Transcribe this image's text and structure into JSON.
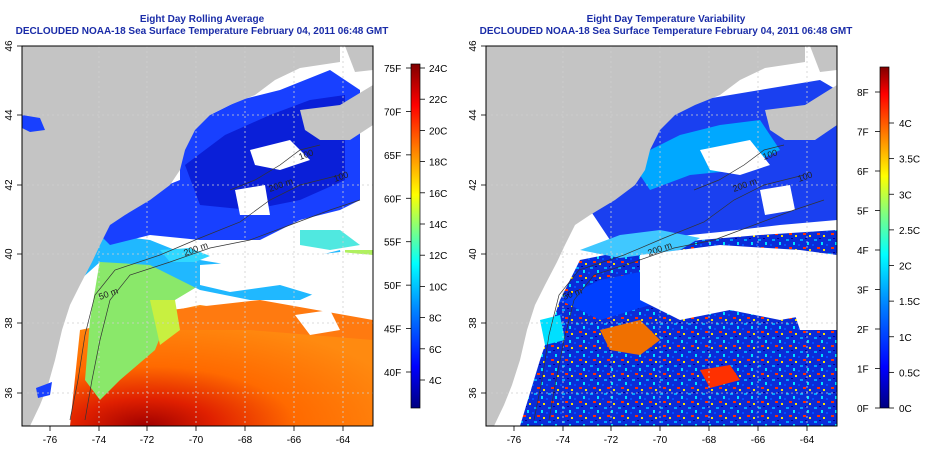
{
  "left_panel": {
    "title_line1": "Eight Day Rolling Average",
    "title_line2": "DECLOUDED NOAA-18 Sea Surface Temperature February 04, 2011 06:48 GMT",
    "lon_ticks": [
      "-76",
      "-74",
      "-72",
      "-70",
      "-68",
      "-66",
      "-64"
    ],
    "lat_ticks": [
      "36",
      "38",
      "40",
      "42",
      "44",
      "46"
    ],
    "contour_labels": [
      "200 m",
      "100",
      "50 m",
      "200 m",
      "100"
    ],
    "colorbar": {
      "fahrenheit": [
        "40F",
        "45F",
        "50F",
        "55F",
        "60F",
        "65F",
        "70F",
        "75F"
      ],
      "celsius": [
        "4C",
        "6C",
        "8C",
        "10C",
        "12C",
        "14C",
        "16C",
        "18C",
        "20C",
        "22C",
        "24C"
      ]
    }
  },
  "right_panel": {
    "title_line1": "Eight Day Temperature Variability",
    "title_line2": "DECLOUDED NOAA-18 Sea Surface Temperature February 04, 2011 06:48 GMT",
    "lon_ticks": [
      "-76",
      "-74",
      "-72",
      "-70",
      "-68",
      "-66",
      "-64"
    ],
    "lat_ticks": [
      "36",
      "38",
      "40",
      "42",
      "44",
      "46"
    ],
    "contour_labels": [
      "200 m",
      "100",
      "50 m",
      "200 m",
      "100"
    ],
    "colorbar": {
      "fahrenheit": [
        "0F",
        "1F",
        "2F",
        "3F",
        "4F",
        "5F",
        "6F",
        "7F",
        "8F"
      ],
      "celsius": [
        "0C",
        "0.5C",
        "1C",
        "1.5C",
        "2C",
        "2.5C",
        "3C",
        "3.5C",
        "4C"
      ]
    }
  },
  "colors": {
    "land": "#c4c4c4",
    "cloud": "#ffffff",
    "title": "#1a2ca8",
    "colormap": [
      "#000080",
      "#0000ff",
      "#0080ff",
      "#00ffff",
      "#80ff80",
      "#ffff00",
      "#ff8000",
      "#ff0000",
      "#800000"
    ]
  }
}
